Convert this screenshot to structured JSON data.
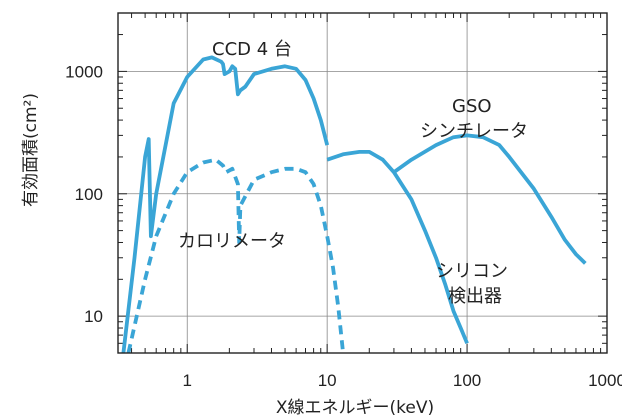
{
  "chart_data": {
    "type": "line",
    "xlabel": "X線エネルギー(keV)",
    "ylabel": "有効面積(cm²)",
    "xscale": "log",
    "yscale": "log",
    "xlim": [
      0.32,
      1000
    ],
    "ylim": [
      5,
      3000
    ],
    "grid": true,
    "x_ticks": [
      {
        "value": 1,
        "label": "1"
      },
      {
        "value": 10,
        "label": "10"
      },
      {
        "value": 100,
        "label": "100"
      },
      {
        "value": 1000,
        "label": "1000"
      }
    ],
    "y_ticks": [
      {
        "value": 10,
        "label": "10"
      },
      {
        "value": 100,
        "label": "100"
      },
      {
        "value": 1000,
        "label": "1000"
      }
    ],
    "series": [
      {
        "name": "CCD 4 台",
        "style": "solid",
        "points": [
          [
            0.35,
            5
          ],
          [
            0.42,
            30
          ],
          [
            0.5,
            200
          ],
          [
            0.53,
            280
          ],
          [
            0.55,
            45
          ],
          [
            0.6,
            100
          ],
          [
            0.8,
            550
          ],
          [
            1.0,
            900
          ],
          [
            1.3,
            1250
          ],
          [
            1.5,
            1300
          ],
          [
            1.75,
            1200
          ],
          [
            1.8,
            1150
          ],
          [
            1.85,
            950
          ],
          [
            2.0,
            1000
          ],
          [
            2.1,
            1100
          ],
          [
            2.2,
            1050
          ],
          [
            2.3,
            650
          ],
          [
            2.4,
            700
          ],
          [
            2.6,
            750
          ],
          [
            3,
            950
          ],
          [
            4,
            1050
          ],
          [
            5,
            1100
          ],
          [
            6,
            1050
          ],
          [
            7,
            850
          ],
          [
            8,
            600
          ],
          [
            9,
            400
          ],
          [
            10,
            250
          ]
        ]
      },
      {
        "name": "カロリメータ",
        "style": "dashed",
        "points": [
          [
            0.38,
            5
          ],
          [
            0.5,
            20
          ],
          [
            0.6,
            45
          ],
          [
            0.8,
            100
          ],
          [
            1.0,
            150
          ],
          [
            1.3,
            180
          ],
          [
            1.6,
            190
          ],
          [
            1.8,
            170
          ],
          [
            1.9,
            150
          ],
          [
            2.1,
            160
          ],
          [
            2.3,
            120
          ],
          [
            2.35,
            40
          ],
          [
            2.4,
            80
          ],
          [
            3,
            130
          ],
          [
            4,
            150
          ],
          [
            5,
            160
          ],
          [
            6,
            160
          ],
          [
            7,
            150
          ],
          [
            8,
            120
          ],
          [
            9,
            80
          ],
          [
            10,
            45
          ],
          [
            11,
            25
          ],
          [
            12,
            12
          ],
          [
            13,
            5
          ]
        ]
      },
      {
        "name": "シリコン 検出器",
        "style": "solid",
        "points": [
          [
            10,
            190
          ],
          [
            13,
            210
          ],
          [
            17,
            220
          ],
          [
            20,
            220
          ],
          [
            25,
            190
          ],
          [
            30,
            150
          ],
          [
            40,
            90
          ],
          [
            50,
            50
          ],
          [
            60,
            30
          ],
          [
            70,
            18
          ],
          [
            80,
            11
          ],
          [
            90,
            8
          ],
          [
            100,
            6
          ]
        ]
      },
      {
        "name": "GSO シンチレータ",
        "style": "solid",
        "points": [
          [
            30,
            150
          ],
          [
            40,
            190
          ],
          [
            60,
            250
          ],
          [
            80,
            290
          ],
          [
            100,
            300
          ],
          [
            130,
            290
          ],
          [
            170,
            250
          ],
          [
            200,
            200
          ],
          [
            300,
            110
          ],
          [
            400,
            65
          ],
          [
            500,
            42
          ],
          [
            600,
            32
          ],
          [
            700,
            27
          ]
        ]
      }
    ],
    "annotations": [
      {
        "text": "CCD 4 台"
      },
      {
        "text": "カロリメータ"
      },
      {
        "text": "GSO"
      },
      {
        "text": "シンチレータ"
      },
      {
        "text": "シリコン"
      },
      {
        "text": "検出器"
      }
    ],
    "line_color": "#3aa5d6",
    "grid_color": "#888888",
    "axis_color": "#222222",
    "text_color": "#222222"
  }
}
